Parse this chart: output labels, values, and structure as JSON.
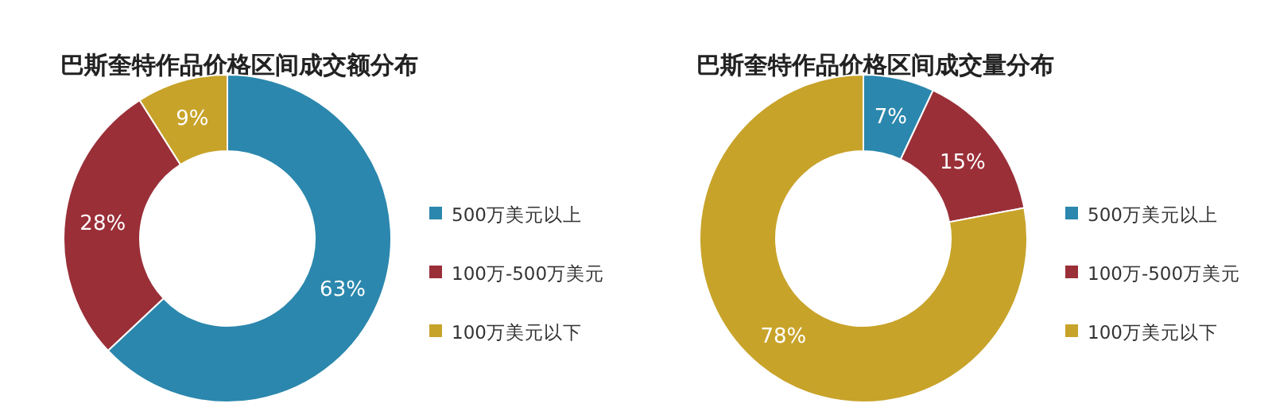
{
  "chart_data": [
    {
      "type": "donut",
      "title": "巴斯奎特作品价格区间成交额分布",
      "categories": [
        "500万美元以上",
        "100万-500万美元",
        "100万美元以下"
      ],
      "values": [
        63,
        28,
        9
      ],
      "colors": [
        "#2b87ad",
        "#9a2f38",
        "#c8a32a"
      ],
      "value_labels": [
        "63%",
        "28%",
        "9%"
      ],
      "legend": "right"
    },
    {
      "type": "donut",
      "title": "巴斯奎特作品价格区间成交量分布",
      "categories": [
        "500万美元以上",
        "100万-500万美元",
        "100万美元以下"
      ],
      "values": [
        7,
        15,
        78
      ],
      "colors": [
        "#2b87ad",
        "#9a2f38",
        "#c8a32a"
      ],
      "value_labels": [
        "7%",
        "15%",
        "78%"
      ],
      "legend": "right"
    }
  ]
}
